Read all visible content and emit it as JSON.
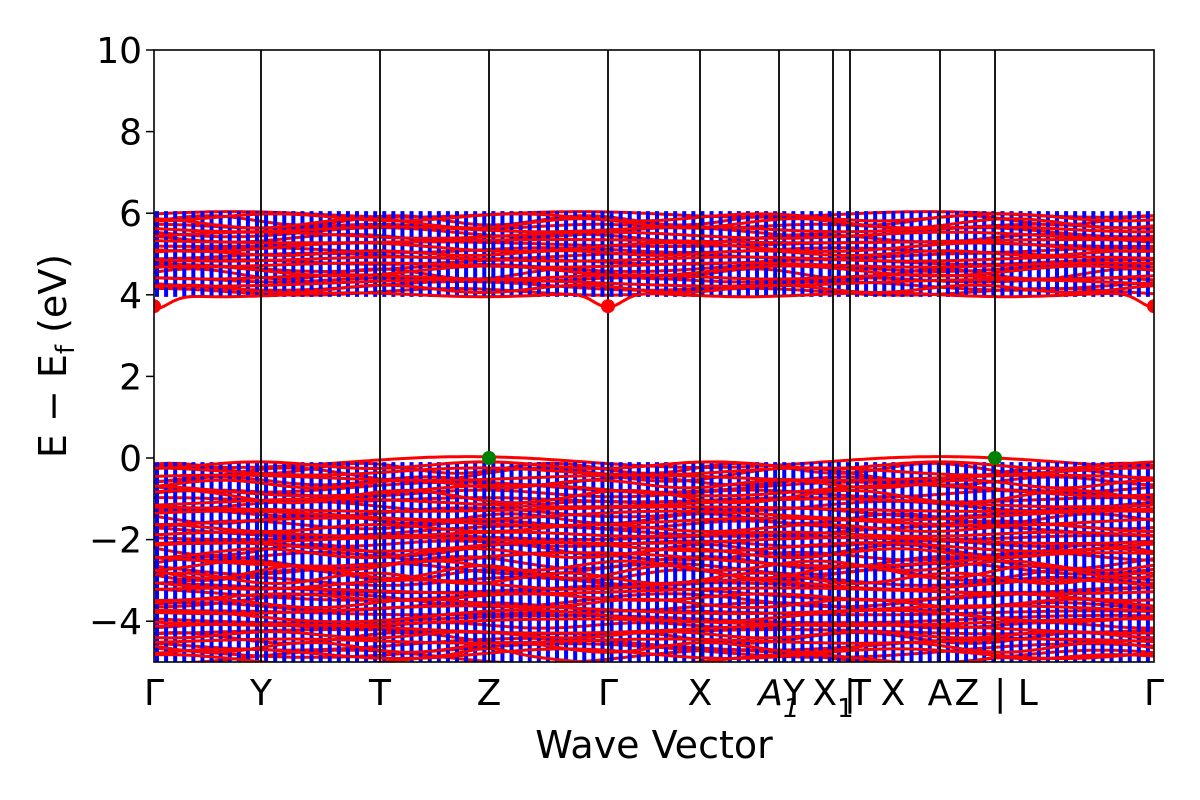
{
  "chart_data": {
    "type": "line",
    "xlabel": "Wave Vector",
    "ylabel": "E − E_f (eV)",
    "ylabel_main": "E − E",
    "ylabel_sub": "f",
    "ylabel_unit": " (eV)",
    "ylim": [
      -5,
      10
    ],
    "xlim": [
      0,
      1
    ],
    "yticks": [
      -4,
      -2,
      0,
      2,
      4,
      6,
      8,
      10
    ],
    "ytick_labels": [
      "−4",
      "−2",
      "0",
      "2",
      "4",
      "6",
      "8",
      "10"
    ],
    "kpoints": [
      {
        "label": "Γ",
        "x": 0.0
      },
      {
        "label": "Y",
        "x": 0.107
      },
      {
        "label": "T",
        "x": 0.226
      },
      {
        "label": "Z",
        "x": 0.335
      },
      {
        "label": "Γ",
        "x": 0.454
      },
      {
        "label": "X",
        "x": 0.546
      },
      {
        "label": "A",
        "sub": "1",
        "x": 0.625
      },
      {
        "label": "Y",
        "x": 0.64
      },
      {
        "label": "X",
        "sub": "1",
        "x": 0.679
      },
      {
        "label": "|",
        "x": 0.696
      },
      {
        "label": "T",
        "x": 0.706
      },
      {
        "label": "X",
        "x": 0.739
      },
      {
        "label": "A",
        "x": 0.786
      },
      {
        "label": "Z",
        "x": 0.813
      },
      {
        "label": "| L",
        "x": 0.862
      },
      {
        "label": "Γ",
        "x": 1.0
      }
    ],
    "vlines": [
      0.107,
      0.226,
      0.335,
      0.454,
      0.546,
      0.625,
      0.679,
      0.696,
      0.786,
      0.841
    ],
    "series": [
      {
        "color": "#ff0000"
      },
      {
        "color": "#0000ff"
      }
    ],
    "valence_band_top_points": [
      {
        "x": 0.335,
        "y": 0.0,
        "color": "#008000"
      },
      {
        "x": 0.841,
        "y": 0.0,
        "color": "#008000"
      }
    ],
    "conduction_band_bottom_points": [
      {
        "x": 0.0,
        "y": 3.72,
        "color": "#ff0000"
      },
      {
        "x": 0.454,
        "y": 3.72,
        "color": "#ff0000"
      },
      {
        "x": 1.0,
        "y": 3.72,
        "color": "#ff0000"
      }
    ],
    "conduction_band": {
      "min": 3.72,
      "max": 6.1
    },
    "valence_band": {
      "max": 0.0,
      "min": -5.0
    }
  }
}
